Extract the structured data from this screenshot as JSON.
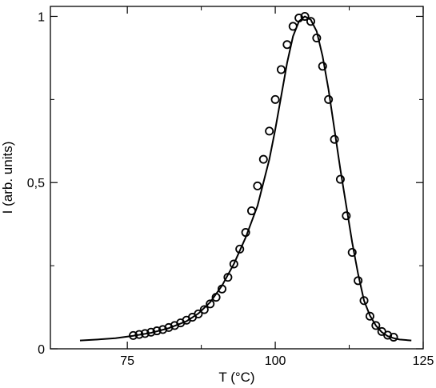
{
  "chart_data": {
    "type": "line",
    "title": "",
    "xlabel": "T (°C)",
    "ylabel": "I (arb. units)",
    "xlim": [
      62,
      125
    ],
    "ylim": [
      0,
      1.03
    ],
    "x_ticks": [
      75,
      100,
      125
    ],
    "x_tick_labels": [
      "75",
      "100",
      "125"
    ],
    "y_ticks": [
      0,
      0.5,
      1
    ],
    "y_tick_labels": [
      "0",
      "0,5",
      "1"
    ],
    "grid": false,
    "legend": "none",
    "colors": {
      "line": "#000000",
      "markers": "#000000",
      "background": "#ffffff"
    },
    "series": [
      {
        "style": "line",
        "x": [
          67,
          70,
          73,
          76,
          79,
          82,
          85,
          87,
          89,
          91,
          93,
          95,
          97,
          99,
          100,
          101,
          102,
          103,
          104,
          105,
          106,
          107,
          108,
          109,
          110,
          111,
          112,
          113,
          114,
          115,
          116,
          117,
          118,
          119,
          120,
          121,
          123
        ],
        "y": [
          0.025,
          0.028,
          0.032,
          0.039,
          0.048,
          0.062,
          0.083,
          0.106,
          0.14,
          0.19,
          0.255,
          0.335,
          0.43,
          0.57,
          0.66,
          0.76,
          0.86,
          0.94,
          0.985,
          1.0,
          0.99,
          0.955,
          0.88,
          0.78,
          0.66,
          0.54,
          0.43,
          0.32,
          0.225,
          0.145,
          0.1,
          0.07,
          0.05,
          0.038,
          0.032,
          0.028,
          0.025
        ]
      },
      {
        "style": "markers",
        "x": [
          76,
          77,
          78,
          79,
          80,
          81,
          82,
          83,
          84,
          85,
          86,
          87,
          88,
          89,
          90,
          91,
          92,
          93,
          94,
          95,
          96,
          97,
          98,
          99,
          100,
          101,
          102,
          103,
          104,
          105,
          106,
          107,
          108,
          109,
          110,
          111,
          112,
          113,
          114,
          115,
          116,
          117,
          118,
          119,
          120
        ],
        "y": [
          0.04,
          0.043,
          0.046,
          0.05,
          0.054,
          0.058,
          0.064,
          0.07,
          0.078,
          0.086,
          0.095,
          0.105,
          0.118,
          0.135,
          0.155,
          0.18,
          0.215,
          0.255,
          0.3,
          0.35,
          0.415,
          0.49,
          0.57,
          0.655,
          0.75,
          0.84,
          0.915,
          0.97,
          0.995,
          1.0,
          0.985,
          0.935,
          0.85,
          0.75,
          0.63,
          0.51,
          0.4,
          0.29,
          0.205,
          0.145,
          0.098,
          0.07,
          0.052,
          0.041,
          0.035
        ]
      }
    ]
  }
}
